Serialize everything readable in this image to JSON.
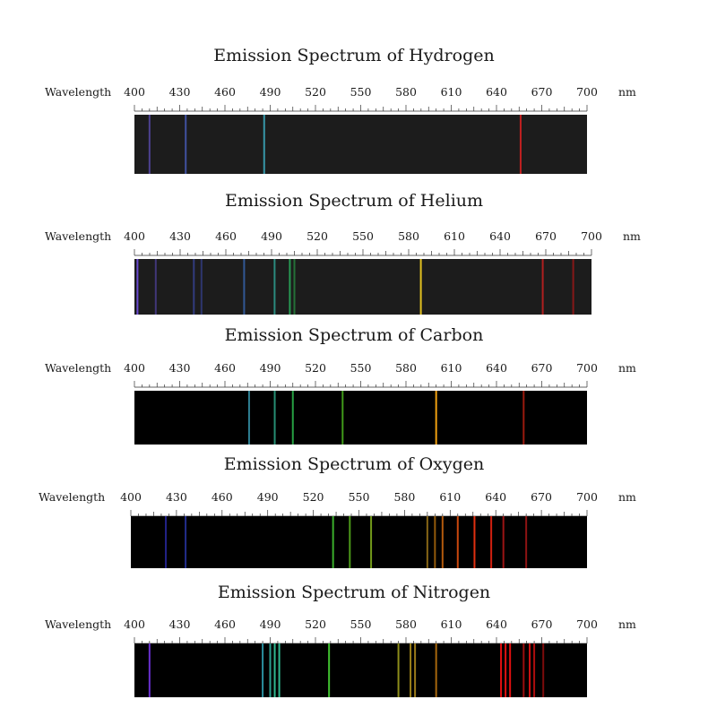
{
  "axis": {
    "label": "Wavelength",
    "unit": "nm",
    "ticks": [
      400,
      430,
      460,
      490,
      520,
      550,
      580,
      610,
      640,
      670,
      700
    ],
    "range": [
      400,
      700
    ]
  },
  "chart_data": {
    "type": "emission-spectra",
    "spectra": [
      {
        "title": "Emission Spectrum of Hydrogen",
        "element": "hydrogen",
        "background": "#1c1c1c",
        "lines": [
          {
            "wavelength": 410,
            "color": "#5a4bb0",
            "intensity": 0.8
          },
          {
            "wavelength": 434,
            "color": "#4a5fc0",
            "intensity": 0.8
          },
          {
            "wavelength": 486,
            "color": "#3aa4b8",
            "intensity": 0.9
          },
          {
            "wavelength": 656,
            "color": "#c02020",
            "intensity": 1.0
          }
        ]
      },
      {
        "title": "Emission Spectrum of Helium",
        "element": "helium",
        "background": "#1c1c1c",
        "lines": [
          {
            "wavelength": 402,
            "color": "#6a4ad0",
            "intensity": 1.0
          },
          {
            "wavelength": 414,
            "color": "#5a4ab8",
            "intensity": 0.6
          },
          {
            "wavelength": 439,
            "color": "#4050c0",
            "intensity": 0.6
          },
          {
            "wavelength": 444,
            "color": "#4050c0",
            "intensity": 0.5
          },
          {
            "wavelength": 472,
            "color": "#3a70c8",
            "intensity": 0.7
          },
          {
            "wavelength": 492,
            "color": "#30a898",
            "intensity": 0.8
          },
          {
            "wavelength": 502,
            "color": "#2aa85a",
            "intensity": 0.9
          },
          {
            "wavelength": 505,
            "color": "#2aa84a",
            "intensity": 0.6
          },
          {
            "wavelength": 588,
            "color": "#e0c020",
            "intensity": 1.0
          },
          {
            "wavelength": 668,
            "color": "#c02020",
            "intensity": 0.9
          },
          {
            "wavelength": 688,
            "color": "#a01818",
            "intensity": 0.8
          }
        ]
      },
      {
        "title": "Emission Spectrum of Carbon",
        "element": "carbon",
        "background": "#000000",
        "lines": [
          {
            "wavelength": 476,
            "color": "#3aa0b8",
            "intensity": 0.8
          },
          {
            "wavelength": 493,
            "color": "#30b090",
            "intensity": 0.8
          },
          {
            "wavelength": 505,
            "color": "#2ab04a",
            "intensity": 0.9
          },
          {
            "wavelength": 538,
            "color": "#50c020",
            "intensity": 0.8
          },
          {
            "wavelength": 600,
            "color": "#f0a010",
            "intensity": 1.0
          },
          {
            "wavelength": 658,
            "color": "#c02010",
            "intensity": 0.8
          }
        ]
      },
      {
        "title": "Emission Spectrum of Oxygen",
        "element": "oxygen",
        "background": "#000000",
        "lines": [
          {
            "wavelength": 423,
            "color": "#3030c0",
            "intensity": 0.7
          },
          {
            "wavelength": 436,
            "color": "#3040c8",
            "intensity": 0.7
          },
          {
            "wavelength": 533,
            "color": "#40c030",
            "intensity": 0.9
          },
          {
            "wavelength": 544,
            "color": "#60c020",
            "intensity": 0.8
          },
          {
            "wavelength": 558,
            "color": "#90c020",
            "intensity": 0.8
          },
          {
            "wavelength": 595,
            "color": "#c09020",
            "intensity": 0.7
          },
          {
            "wavelength": 600,
            "color": "#d08010",
            "intensity": 0.7
          },
          {
            "wavelength": 605,
            "color": "#e07010",
            "intensity": 0.8
          },
          {
            "wavelength": 615,
            "color": "#e05010",
            "intensity": 0.9
          },
          {
            "wavelength": 626,
            "color": "#e03010",
            "intensity": 1.0
          },
          {
            "wavelength": 637,
            "color": "#d02010",
            "intensity": 1.0
          },
          {
            "wavelength": 645,
            "color": "#c01818",
            "intensity": 0.8
          },
          {
            "wavelength": 660,
            "color": "#b01818",
            "intensity": 0.8
          }
        ]
      },
      {
        "title": "Emission Spectrum of Nitrogen",
        "element": "nitrogen",
        "background": "#000000",
        "lines": [
          {
            "wavelength": 410,
            "color": "#6a30d0",
            "intensity": 1.0
          },
          {
            "wavelength": 485,
            "color": "#30a0b0",
            "intensity": 0.9
          },
          {
            "wavelength": 490,
            "color": "#30b0a0",
            "intensity": 0.9
          },
          {
            "wavelength": 493,
            "color": "#30b890",
            "intensity": 1.0
          },
          {
            "wavelength": 496,
            "color": "#30b890",
            "intensity": 1.0
          },
          {
            "wavelength": 529,
            "color": "#40c030",
            "intensity": 1.0
          },
          {
            "wavelength": 575,
            "color": "#b0b020",
            "intensity": 0.8
          },
          {
            "wavelength": 583,
            "color": "#c0a020",
            "intensity": 0.8
          },
          {
            "wavelength": 586,
            "color": "#c09820",
            "intensity": 0.8
          },
          {
            "wavelength": 600,
            "color": "#d08010",
            "intensity": 0.8
          },
          {
            "wavelength": 643,
            "color": "#e01010",
            "intensity": 1.0
          },
          {
            "wavelength": 646,
            "color": "#e01010",
            "intensity": 1.0
          },
          {
            "wavelength": 649,
            "color": "#e01010",
            "intensity": 1.0
          },
          {
            "wavelength": 658,
            "color": "#c01010",
            "intensity": 0.8
          },
          {
            "wavelength": 662,
            "color": "#d01010",
            "intensity": 1.0
          },
          {
            "wavelength": 665,
            "color": "#c01010",
            "intensity": 0.9
          },
          {
            "wavelength": 671,
            "color": "#b01010",
            "intensity": 0.7
          }
        ]
      }
    ]
  }
}
